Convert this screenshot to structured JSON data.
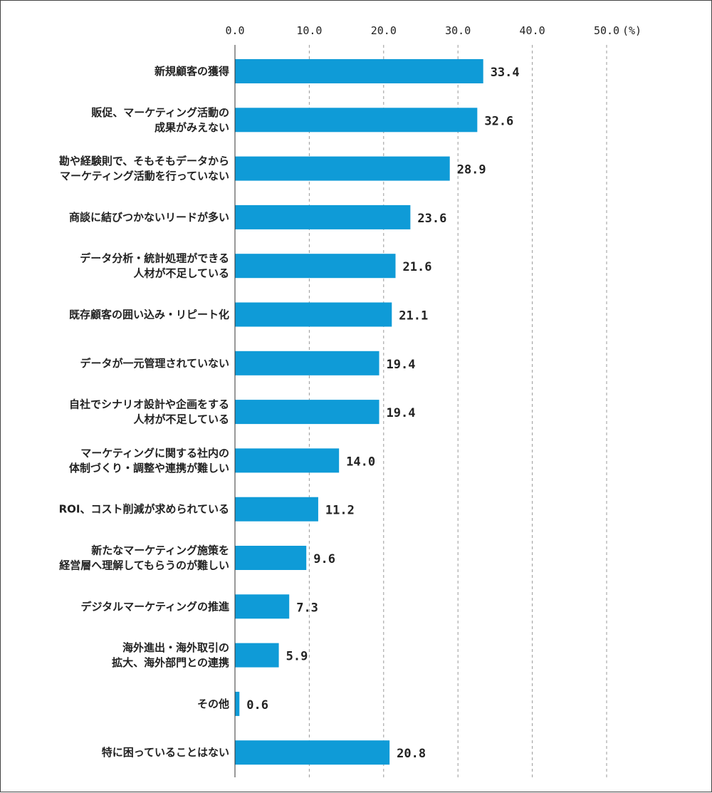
{
  "chart_data": {
    "type": "bar",
    "orientation": "horizontal",
    "xlim": [
      0,
      50
    ],
    "ticks": [
      "0.0",
      "10.0",
      "20.0",
      "30.0",
      "40.0",
      "50.0"
    ],
    "tick_values": [
      0,
      10,
      20,
      30,
      40,
      50
    ],
    "unit": "(%)",
    "bar_color": "#0f9bd7",
    "grid": true,
    "categories": [
      [
        "新規顧客の獲得"
      ],
      [
        "販促、マーケティング活動の",
        "成果がみえない"
      ],
      [
        "勘や経験則で、そもそもデータから",
        "マーケティング活動を行っていない"
      ],
      [
        "商談に結びつかないリードが多い"
      ],
      [
        "データ分析・統計処理ができる",
        "人材が不足している"
      ],
      [
        "既存顧客の囲い込み・リピート化"
      ],
      [
        "データが一元管理されていない"
      ],
      [
        "自社でシナリオ設計や企画をする",
        "人材が不足している"
      ],
      [
        "マーケティングに関する社内の",
        "体制づくり・調整や連携が難しい"
      ],
      [
        "ROI、コスト削減が求められている"
      ],
      [
        "新たなマーケティング施策を",
        "経営層へ理解してもらうのが難しい"
      ],
      [
        "デジタルマーケティングの推進"
      ],
      [
        "海外進出・海外取引の",
        "拡大、海外部門との連携"
      ],
      [
        "その他"
      ],
      [
        "特に困っていることはない"
      ]
    ],
    "values": [
      33.4,
      32.6,
      28.9,
      23.6,
      21.6,
      21.1,
      19.4,
      19.4,
      14.0,
      11.2,
      9.6,
      7.3,
      5.9,
      0.6,
      20.8
    ],
    "value_labels": [
      "33.4",
      "32.6",
      "28.9",
      "23.6",
      "21.6",
      "21.1",
      "19.4",
      "19.4",
      "14.0",
      "11.2",
      "9.6",
      "7.3",
      "5.9",
      "0.6",
      "20.8"
    ]
  }
}
